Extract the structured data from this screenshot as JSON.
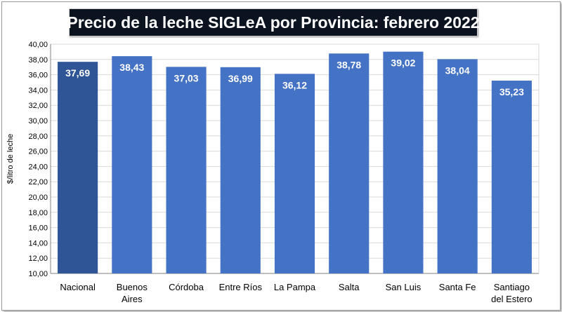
{
  "chart_data": {
    "type": "bar",
    "title": "Precio de la leche SIGLeA por Provincia: febrero 2022",
    "ylabel": "$/litro de leche",
    "xlabel": "",
    "ylim": [
      10,
      40
    ],
    "ytick_step": 2,
    "grid": true,
    "legend": "none",
    "categories": [
      "Nacional",
      "Buenos Aires",
      "Córdoba",
      "Entre Ríos",
      "La Pampa",
      "Salta",
      "San Luis",
      "Santa Fe",
      "Santiago del Estero"
    ],
    "category_lines": [
      [
        "Nacional"
      ],
      [
        "Buenos",
        "Aires"
      ],
      [
        "Córdoba"
      ],
      [
        "Entre Ríos"
      ],
      [
        "La Pampa"
      ],
      [
        "Salta"
      ],
      [
        "San Luis"
      ],
      [
        "Santa Fe"
      ],
      [
        "Santiago",
        "del Estero"
      ]
    ],
    "values": [
      37.69,
      38.43,
      37.03,
      36.99,
      36.12,
      38.78,
      39.02,
      38.04,
      35.23
    ],
    "value_labels": [
      "37,69",
      "38,43",
      "37,03",
      "36,99",
      "36,12",
      "38,78",
      "39,02",
      "38,04",
      "35,23"
    ],
    "ytick_labels": [
      "10,00",
      "12,00",
      "14,00",
      "16,00",
      "18,00",
      "20,00",
      "22,00",
      "24,00",
      "26,00",
      "28,00",
      "30,00",
      "32,00",
      "34,00",
      "36,00",
      "38,00",
      "40,00"
    ],
    "colors": {
      "highlight": "#2f5597",
      "bar": "#4472c4",
      "grid": "#d9d9d9",
      "title_bg": "#0b1220"
    }
  }
}
